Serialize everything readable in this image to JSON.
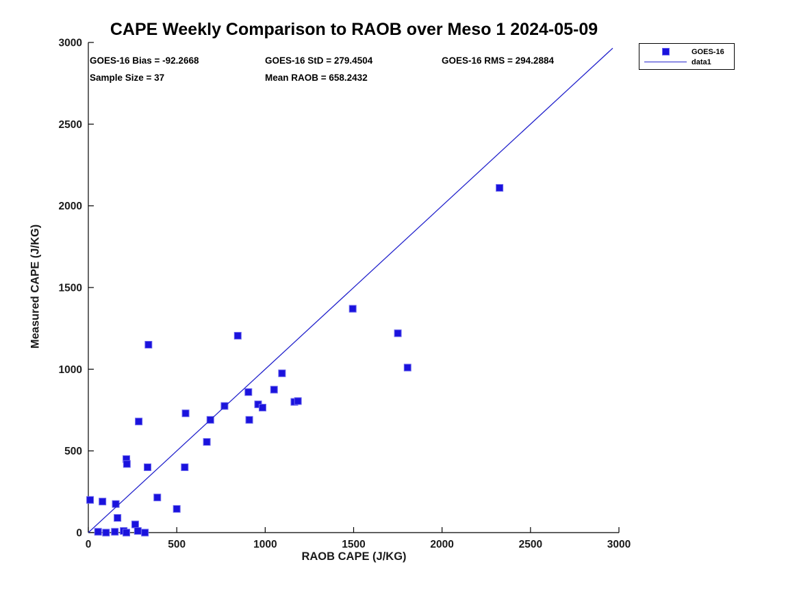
{
  "title": "CAPE Weekly Comparison to RAOB over Meso 1 2024-05-09",
  "stats": {
    "bias": "GOES-16 Bias = -92.2668",
    "std": "GOES-16 StD = 279.4504",
    "rms": "GOES-16 RMS = 294.2884",
    "sample_size": "Sample Size = 37",
    "mean_raob": "Mean RAOB = 658.2432"
  },
  "legend": {
    "items": [
      {
        "label": "GOES-16",
        "type": "marker"
      },
      {
        "label": "data1",
        "type": "line"
      }
    ]
  },
  "colors": {
    "marker_fill": "#1a12dd",
    "marker_edge": "#6a66ee",
    "line": "#2222cc",
    "axis": "#000000",
    "tick_text": "#1a1a1a"
  },
  "chart_data": {
    "type": "scatter",
    "title": "CAPE Weekly Comparison to RAOB over Meso 1 2024-05-09",
    "xlabel": "RAOB CAPE (J/KG)",
    "ylabel": "Measured CAPE (J/KG)",
    "xlim": [
      0,
      3000
    ],
    "ylim": [
      0,
      3000
    ],
    "xticks": [
      0,
      500,
      1000,
      1500,
      2000,
      2500,
      3000
    ],
    "yticks": [
      0,
      500,
      1000,
      1500,
      2000,
      2500,
      3000
    ],
    "grid": false,
    "legend_position": "upper-right-outside",
    "series": [
      {
        "name": "GOES-16",
        "type": "scatter",
        "marker": "square",
        "points": [
          [
            10,
            200
          ],
          [
            80,
            190
          ],
          [
            155,
            175
          ],
          [
            165,
            90
          ],
          [
            265,
            50
          ],
          [
            55,
            5
          ],
          [
            100,
            0
          ],
          [
            150,
            5
          ],
          [
            200,
            10
          ],
          [
            215,
            0
          ],
          [
            280,
            10
          ],
          [
            320,
            0
          ],
          [
            215,
            450
          ],
          [
            218,
            420
          ],
          [
            285,
            680
          ],
          [
            335,
            400
          ],
          [
            340,
            1150
          ],
          [
            390,
            215
          ],
          [
            500,
            145
          ],
          [
            545,
            400
          ],
          [
            550,
            730
          ],
          [
            670,
            555
          ],
          [
            690,
            690
          ],
          [
            770,
            775
          ],
          [
            845,
            1205
          ],
          [
            905,
            860
          ],
          [
            910,
            690
          ],
          [
            960,
            785
          ],
          [
            985,
            765
          ],
          [
            1050,
            875
          ],
          [
            1095,
            975
          ],
          [
            1165,
            800
          ],
          [
            1185,
            805
          ],
          [
            1495,
            1370
          ],
          [
            1750,
            1220
          ],
          [
            1805,
            1010
          ],
          [
            2325,
            2110
          ]
        ]
      },
      {
        "name": "data1",
        "type": "line",
        "points": [
          [
            0,
            0
          ],
          [
            2965,
            2965
          ]
        ]
      }
    ]
  }
}
